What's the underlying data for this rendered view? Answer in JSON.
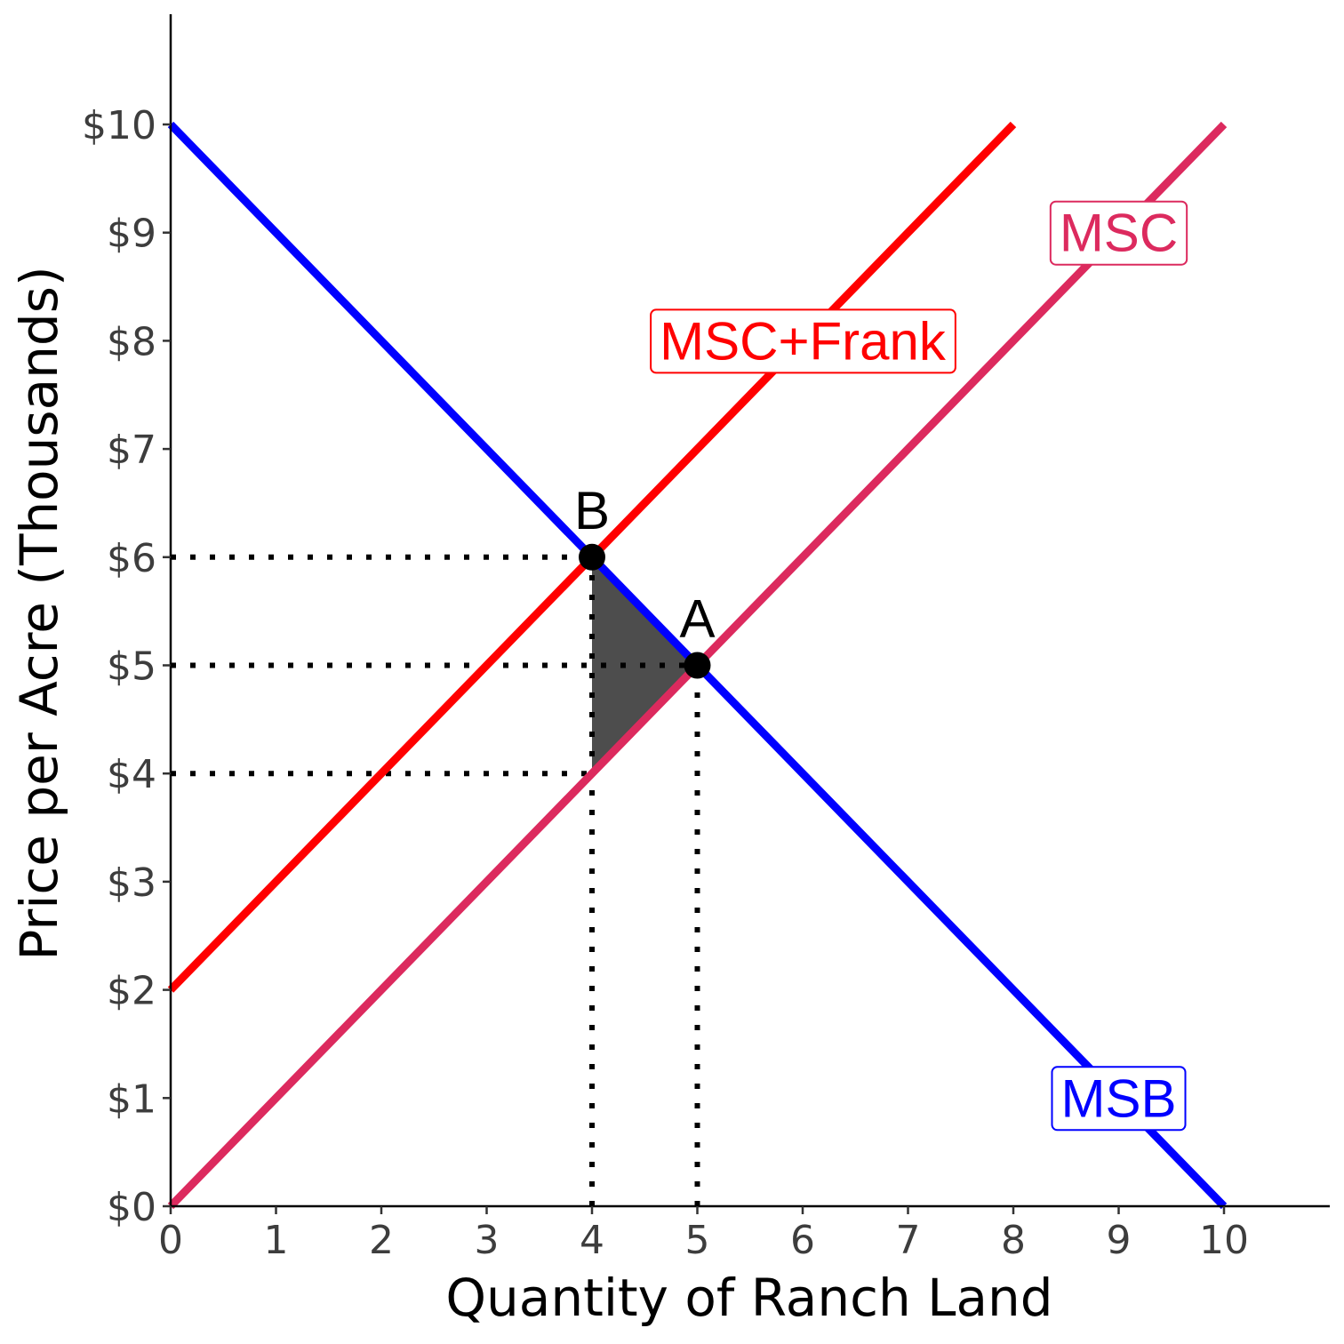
{
  "chart_data": {
    "type": "line",
    "xlabel": "Quantity of Ranch Land",
    "ylabel": "Price per Acre (Thousands)",
    "xlim": [
      0,
      11
    ],
    "ylim": [
      0,
      11
    ],
    "x_ticks": [
      "0",
      "1",
      "2",
      "3",
      "4",
      "5",
      "6",
      "7",
      "8",
      "9",
      "10"
    ],
    "y_ticks": [
      "$0",
      "$1",
      "$2",
      "$3",
      "$4",
      "$5",
      "$6",
      "$7",
      "$8",
      "$9",
      "$10"
    ],
    "grid": false,
    "series": [
      {
        "name": "MSB",
        "color": "#0000ff",
        "x": [
          0,
          10
        ],
        "y": [
          10,
          0
        ]
      },
      {
        "name": "MSC+Frank",
        "color": "#ff0000",
        "x": [
          0,
          8
        ],
        "y": [
          2,
          10
        ]
      },
      {
        "name": "MSC",
        "color": "#dc2a5e",
        "x": [
          0,
          10
        ],
        "y": [
          0,
          10
        ]
      }
    ],
    "curve_labels": [
      {
        "text": "MSC",
        "color": "#dc2a5e",
        "x": 9.0,
        "y": 9.0
      },
      {
        "text": "MSC+Frank",
        "color": "#ff0000",
        "x": 6.0,
        "y": 8.0
      },
      {
        "text": "MSB",
        "color": "#0000ff",
        "x": 9.0,
        "y": 1.0
      }
    ],
    "points": [
      {
        "label": "B",
        "x": 4,
        "y": 6
      },
      {
        "label": "A",
        "x": 5,
        "y": 5
      }
    ],
    "reference_lines": [
      {
        "x1": 0,
        "y1": 6,
        "x2": 4,
        "y2": 6
      },
      {
        "x1": 0,
        "y1": 5,
        "x2": 5,
        "y2": 5
      },
      {
        "x1": 0,
        "y1": 4,
        "x2": 4,
        "y2": 4
      },
      {
        "x1": 4,
        "y1": 0,
        "x2": 4,
        "y2": 6
      },
      {
        "x1": 5,
        "y1": 0,
        "x2": 5,
        "y2": 5
      }
    ],
    "shaded_region": {
      "color": "#4d4d4d",
      "points": [
        [
          4,
          6
        ],
        [
          5,
          5
        ],
        [
          4,
          4
        ]
      ]
    }
  }
}
